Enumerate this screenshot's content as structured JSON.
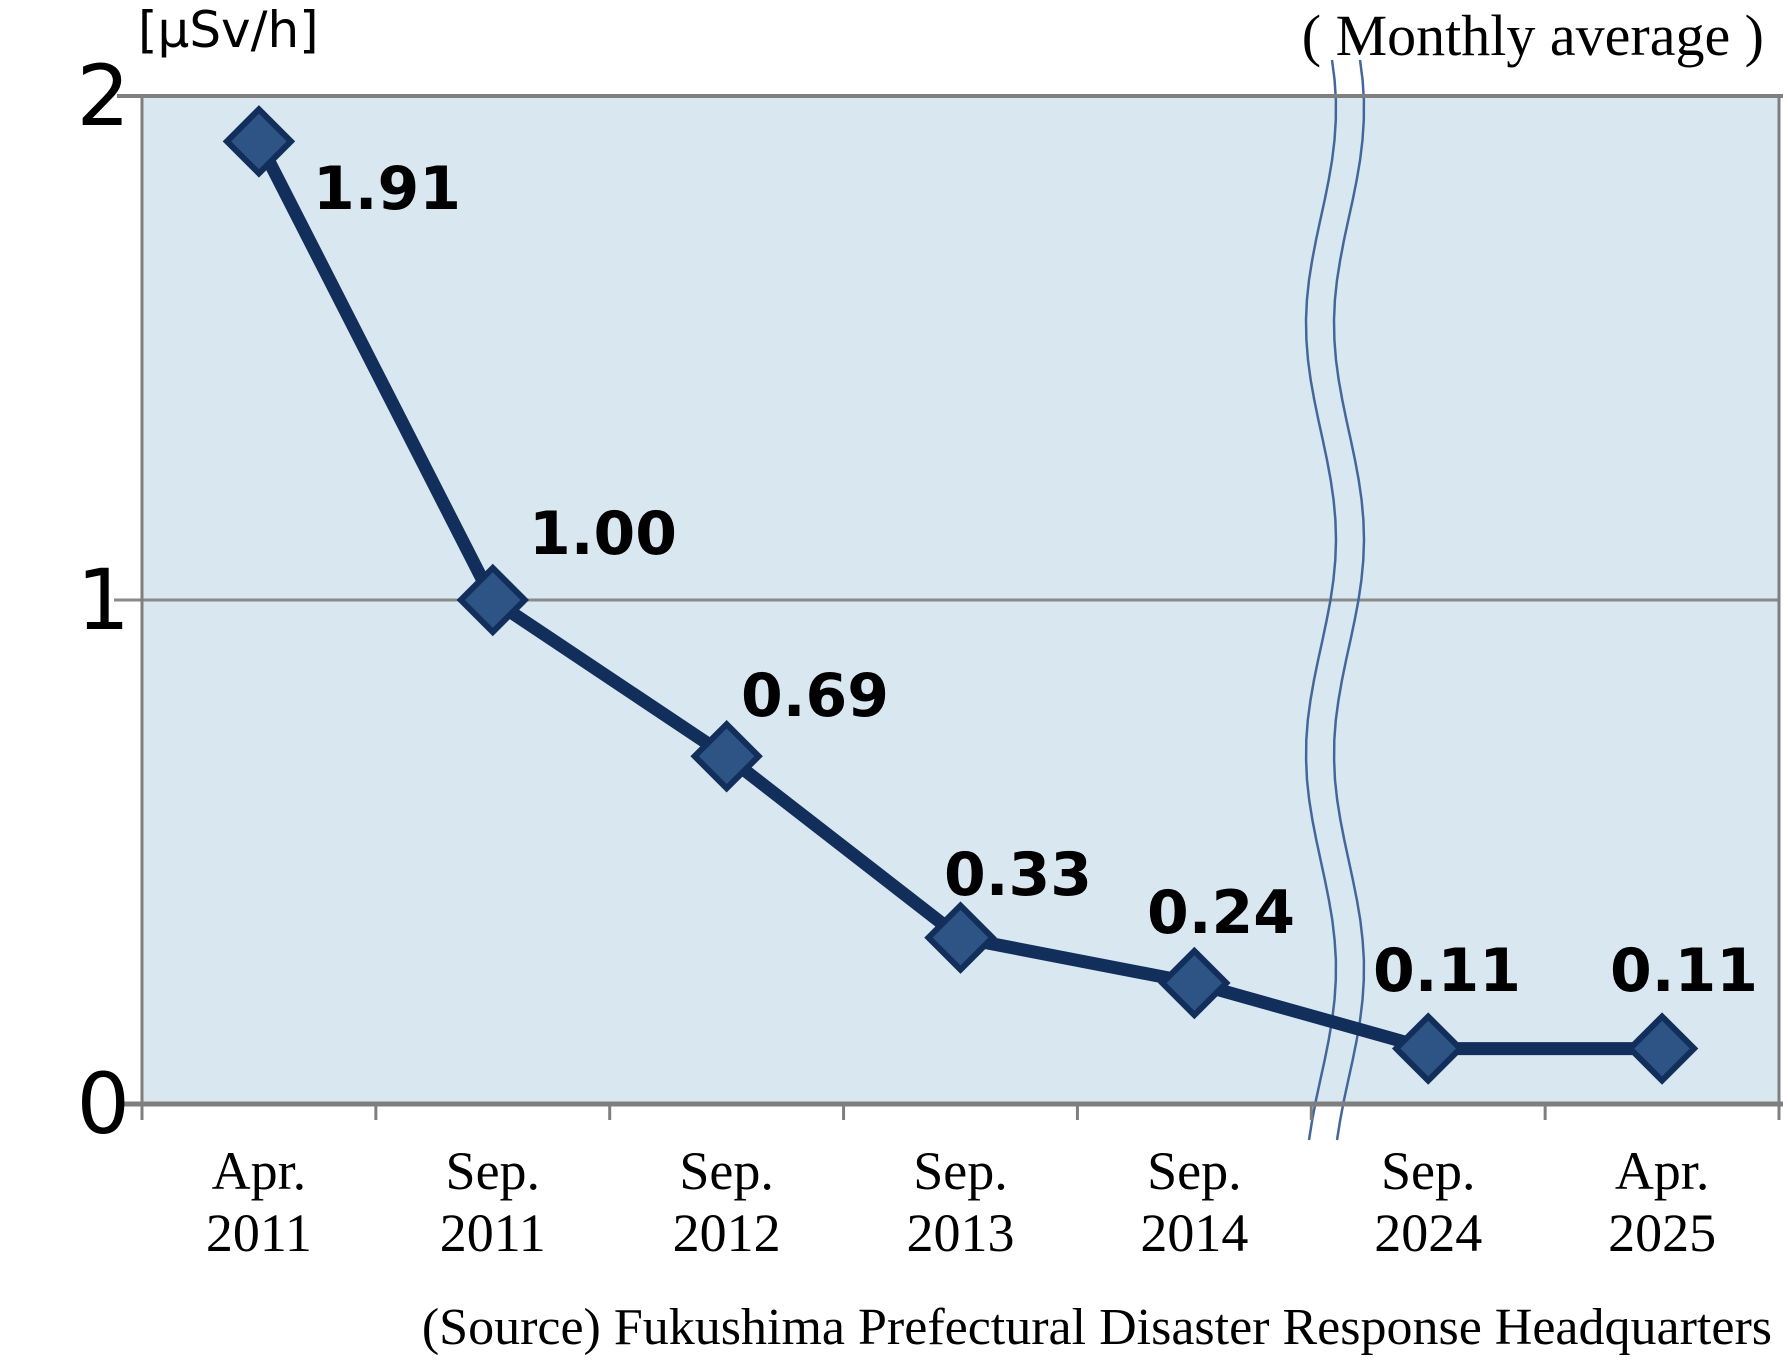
{
  "y_axis": {
    "tick_labels": [
      "2",
      "1",
      "0"
    ]
  },
  "chart_data": {
    "type": "line",
    "title": "",
    "ylabel": "[μSv/h]",
    "note": "( Monthly average )",
    "source": "(Source) Fukushima Prefectural Disaster Response Headquarters",
    "categories": [
      "Apr. 2011",
      "Sep. 2011",
      "Sep. 2012",
      "Sep. 2013",
      "Sep. 2014",
      "Sep. 2024",
      "Apr. 2025"
    ],
    "values": [
      1.91,
      1.0,
      0.69,
      0.33,
      0.24,
      0.11,
      0.11
    ],
    "data_labels": [
      "1.91",
      "1.00",
      "0.69",
      "0.33",
      "0.24",
      "0.11",
      "0.11"
    ],
    "unit": "μSv/h",
    "ylim": [
      0,
      2
    ],
    "yticks": [
      0,
      1,
      2
    ],
    "grid": "horizontal-major",
    "legend": "none",
    "marker": "diamond",
    "axis_break": {
      "between": [
        "Sep. 2014",
        "Sep. 2024"
      ],
      "style": "double-wavy-line"
    },
    "colors": {
      "plot_bg": "#d9e8f0",
      "line": "#122f5c",
      "marker_fill": "#2d5484",
      "axis": "#7f7f7f",
      "grid": "#8a8a8a",
      "break_line": "#44679b",
      "label": "#000000"
    }
  }
}
